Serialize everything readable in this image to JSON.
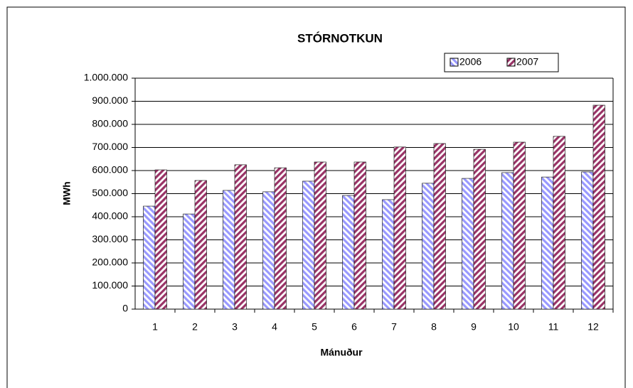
{
  "chart_data": {
    "type": "bar",
    "title": "STÓRNOTKUN",
    "x_label": "Mánuður",
    "y_label": "MWh",
    "categories": [
      "1",
      "2",
      "3",
      "4",
      "5",
      "6",
      "7",
      "8",
      "9",
      "10",
      "11",
      "12"
    ],
    "series": [
      {
        "name": "2006",
        "color": "#9999ff",
        "values": [
          446000,
          412000,
          514000,
          508000,
          554000,
          492000,
          474000,
          545000,
          566000,
          591000,
          572000,
          594000
        ]
      },
      {
        "name": "2007",
        "color": "#993366",
        "values": [
          603000,
          557000,
          625000,
          612000,
          637000,
          637000,
          702000,
          717000,
          692000,
          723000,
          748000,
          883000
        ]
      }
    ],
    "ylim": [
      0,
      1000000
    ],
    "yticks": [
      0,
      {
        "value": 100000,
        "label": "100.000"
      },
      {
        "value": 200000,
        "label": "200.000"
      },
      {
        "value": 300000,
        "label": "300.000"
      },
      {
        "value": 400000,
        "label": "400.000"
      },
      {
        "value": 500000,
        "label": "500.000"
      },
      {
        "value": 600000,
        "label": "600.000"
      },
      {
        "value": 700000,
        "label": "700.000"
      },
      {
        "value": 800000,
        "label": "800.000"
      },
      {
        "value": 900000,
        "label": "900.000"
      },
      {
        "value": 1000000,
        "label": "1.000.000"
      }
    ],
    "grid": true,
    "legend": "top-right"
  }
}
